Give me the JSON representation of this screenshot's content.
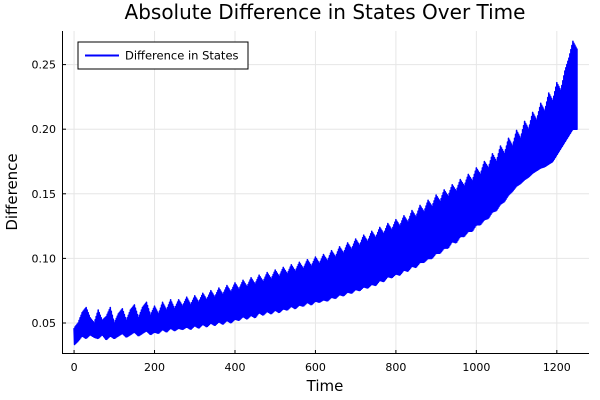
{
  "chart_data": {
    "type": "line",
    "title": "Absolute Difference in States Over Time",
    "xlabel": "Time",
    "ylabel": "Difference",
    "xlim": [
      -30,
      1280
    ],
    "ylim": [
      0.026,
      0.276
    ],
    "xticks": [
      0,
      200,
      400,
      600,
      800,
      1000,
      1200
    ],
    "xtick_labels": [
      "0",
      "200",
      "400",
      "600",
      "800",
      "1000",
      "1200"
    ],
    "yticks": [
      0.05,
      0.1,
      0.15,
      0.2,
      0.25
    ],
    "ytick_labels": [
      "0.05",
      "0.10",
      "0.15",
      "0.20",
      "0.25"
    ],
    "grid": true,
    "legend_position": "top-left",
    "series": [
      {
        "name": "Difference in States",
        "color": "#0000ff",
        "x": [
          0,
          10,
          20,
          30,
          40,
          50,
          60,
          70,
          80,
          90,
          100,
          110,
          120,
          130,
          140,
          150,
          160,
          170,
          180,
          190,
          200,
          210,
          220,
          230,
          240,
          250,
          260,
          270,
          280,
          290,
          300,
          310,
          320,
          330,
          340,
          350,
          360,
          370,
          380,
          390,
          400,
          410,
          420,
          430,
          440,
          450,
          460,
          470,
          480,
          490,
          500,
          510,
          520,
          530,
          540,
          550,
          560,
          570,
          580,
          590,
          600,
          610,
          620,
          630,
          640,
          650,
          660,
          670,
          680,
          690,
          700,
          710,
          720,
          730,
          740,
          750,
          760,
          770,
          780,
          790,
          800,
          810,
          820,
          830,
          840,
          850,
          860,
          870,
          880,
          890,
          900,
          910,
          920,
          930,
          940,
          950,
          960,
          970,
          980,
          990,
          1000,
          1010,
          1020,
          1030,
          1040,
          1050,
          1060,
          1070,
          1080,
          1090,
          1100,
          1110,
          1120,
          1130,
          1140,
          1150,
          1160,
          1170,
          1180,
          1190,
          1200,
          1210,
          1220,
          1230,
          1240,
          1250
        ],
        "lower": [
          0.033,
          0.036,
          0.04,
          0.038,
          0.041,
          0.039,
          0.038,
          0.041,
          0.037,
          0.04,
          0.038,
          0.04,
          0.042,
          0.039,
          0.041,
          0.043,
          0.04,
          0.042,
          0.044,
          0.041,
          0.043,
          0.042,
          0.045,
          0.043,
          0.046,
          0.044,
          0.046,
          0.045,
          0.047,
          0.045,
          0.048,
          0.046,
          0.049,
          0.047,
          0.05,
          0.048,
          0.051,
          0.049,
          0.052,
          0.05,
          0.053,
          0.052,
          0.055,
          0.053,
          0.056,
          0.054,
          0.058,
          0.056,
          0.059,
          0.057,
          0.06,
          0.058,
          0.061,
          0.06,
          0.063,
          0.061,
          0.064,
          0.063,
          0.066,
          0.064,
          0.067,
          0.066,
          0.068,
          0.067,
          0.07,
          0.069,
          0.072,
          0.071,
          0.074,
          0.073,
          0.076,
          0.075,
          0.078,
          0.077,
          0.08,
          0.079,
          0.083,
          0.082,
          0.086,
          0.085,
          0.088,
          0.087,
          0.091,
          0.09,
          0.094,
          0.093,
          0.097,
          0.097,
          0.1,
          0.1,
          0.104,
          0.104,
          0.108,
          0.108,
          0.113,
          0.112,
          0.117,
          0.117,
          0.121,
          0.121,
          0.126,
          0.126,
          0.13,
          0.131,
          0.136,
          0.137,
          0.142,
          0.144,
          0.149,
          0.152,
          0.156,
          0.158,
          0.161,
          0.163,
          0.166,
          0.168,
          0.17,
          0.171,
          0.173,
          0.175,
          0.18,
          0.185,
          0.19,
          0.195,
          0.2,
          0.2
        ],
        "upper": [
          0.046,
          0.05,
          0.058,
          0.062,
          0.054,
          0.05,
          0.06,
          0.052,
          0.055,
          0.062,
          0.05,
          0.057,
          0.061,
          0.052,
          0.06,
          0.064,
          0.054,
          0.062,
          0.066,
          0.056,
          0.063,
          0.057,
          0.066,
          0.06,
          0.068,
          0.061,
          0.068,
          0.063,
          0.07,
          0.064,
          0.071,
          0.066,
          0.073,
          0.068,
          0.075,
          0.07,
          0.077,
          0.072,
          0.079,
          0.074,
          0.081,
          0.076,
          0.083,
          0.078,
          0.085,
          0.08,
          0.087,
          0.082,
          0.089,
          0.084,
          0.091,
          0.086,
          0.093,
          0.088,
          0.095,
          0.09,
          0.097,
          0.092,
          0.099,
          0.094,
          0.101,
          0.096,
          0.103,
          0.098,
          0.106,
          0.101,
          0.109,
          0.104,
          0.112,
          0.107,
          0.115,
          0.11,
          0.118,
          0.113,
          0.121,
          0.116,
          0.124,
          0.119,
          0.127,
          0.122,
          0.13,
          0.125,
          0.133,
          0.128,
          0.137,
          0.132,
          0.141,
          0.136,
          0.145,
          0.14,
          0.149,
          0.144,
          0.153,
          0.148,
          0.157,
          0.152,
          0.161,
          0.156,
          0.165,
          0.16,
          0.17,
          0.165,
          0.175,
          0.17,
          0.181,
          0.175,
          0.187,
          0.181,
          0.193,
          0.187,
          0.199,
          0.193,
          0.206,
          0.2,
          0.213,
          0.207,
          0.22,
          0.214,
          0.228,
          0.222,
          0.236,
          0.23,
          0.245,
          0.255,
          0.268,
          0.262
        ]
      }
    ]
  }
}
